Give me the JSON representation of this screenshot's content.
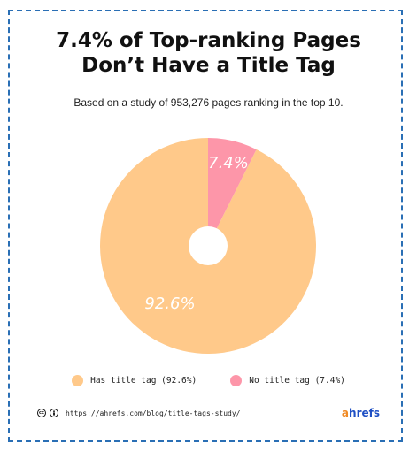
{
  "header": {
    "title_line1": "7.4% of Top-ranking Pages",
    "title_line2": "Don’t Have a Title Tag",
    "subtitle": "Based on a study of 953,276 pages ranking in the top 10."
  },
  "chart_data": {
    "type": "pie",
    "title": "7.4% of Top-ranking Pages Don’t Have a Title Tag",
    "subtitle": "Based on a study of 953,276 pages ranking in the top 10.",
    "categories": [
      "Has title tag",
      "No title tag"
    ],
    "values": [
      92.6,
      7.4
    ],
    "data_labels": [
      "92.6%",
      "7.4%"
    ],
    "colors": [
      "#ffc98a",
      "#fd96a9"
    ],
    "donut_hole": true,
    "legend_position": "bottom"
  },
  "legend": {
    "items": [
      {
        "label": "Has title tag (92.6%)",
        "color": "#ffc98a"
      },
      {
        "label": "No title tag (7.4%)",
        "color": "#fd96a9"
      }
    ]
  },
  "footer": {
    "license_icons": [
      "creative-commons-icon",
      "attribution-icon"
    ],
    "url": "https://ahrefs.com/blog/title-tags-study/",
    "brand_accent": "a",
    "brand_rest": "hrefs",
    "brand_colors": {
      "accent": "#f08a24",
      "main": "#1e4fc4"
    }
  },
  "frame": {
    "border_color": "#2a6fb5"
  }
}
